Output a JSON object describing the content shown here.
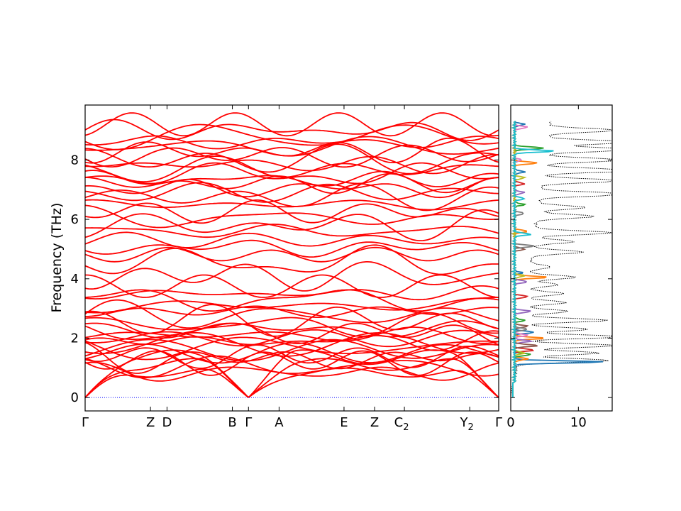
{
  "chart_data": [
    {
      "type": "line",
      "panel": "band-structure",
      "ylabel": "Frequency (THz)",
      "xlabel": "",
      "title": "",
      "ylim": [
        -0.45,
        9.85
      ],
      "y_ticks": [
        0,
        2,
        4,
        6,
        8
      ],
      "q_points": [
        {
          "label": "Γ",
          "sub": "",
          "x": 0.0
        },
        {
          "label": "Z",
          "sub": "",
          "x": 0.158
        },
        {
          "label": "D",
          "sub": "",
          "x": 0.198
        },
        {
          "label": "B",
          "sub": "",
          "x": 0.356
        },
        {
          "label": "Γ",
          "sub": "",
          "x": 0.395
        },
        {
          "label": "A",
          "sub": "",
          "x": 0.469
        },
        {
          "label": "E",
          "sub": "",
          "x": 0.626
        },
        {
          "label": "Z",
          "sub": "",
          "x": 0.7
        },
        {
          "label": "C",
          "sub": "2",
          "x": 0.772
        },
        {
          "label": "Y",
          "sub": "2",
          "x": 0.93
        },
        {
          "label": "Γ",
          "sub": "",
          "x": 1.0
        }
      ],
      "zero_line": {
        "y": 0,
        "color": "#0000ff",
        "style": "dotted"
      },
      "band_color": "#ff0000",
      "acoustic_max_thz": 1.6,
      "optical_band_centers_thz": [
        0.85,
        1.05,
        1.2,
        1.3,
        1.4,
        1.5,
        1.6,
        1.7,
        1.8,
        1.9,
        2.0,
        2.1,
        2.2,
        2.3,
        2.45,
        2.6,
        2.75,
        2.9,
        3.1,
        3.3,
        3.5,
        3.75,
        4.1,
        4.55,
        4.8,
        5.05,
        5.3,
        5.6,
        5.8,
        6.05,
        6.25,
        6.5,
        6.75,
        6.9,
        7.05,
        7.2,
        7.35,
        7.5,
        7.7,
        7.85,
        8.0,
        8.15,
        8.3,
        8.45,
        8.6,
        8.8,
        9.0,
        9.2
      ]
    },
    {
      "type": "line",
      "panel": "density-of-states",
      "xlim": [
        0,
        15
      ],
      "x_ticks": [
        0,
        10
      ],
      "ylim": [
        -0.45,
        9.85
      ],
      "total_dos_style": "dotted",
      "total_dos_color": "#000000",
      "total_dos_peaks": [
        {
          "f": 1.25,
          "v": 13.5
        },
        {
          "f": 1.5,
          "v": 12.0
        },
        {
          "f": 1.75,
          "v": 14.5
        },
        {
          "f": 2.05,
          "v": 15.0
        },
        {
          "f": 2.3,
          "v": 10.0
        },
        {
          "f": 2.6,
          "v": 12.5
        },
        {
          "f": 2.9,
          "v": 6.5
        },
        {
          "f": 3.2,
          "v": 6.0
        },
        {
          "f": 3.5,
          "v": 5.5
        },
        {
          "f": 3.8,
          "v": 4.5
        },
        {
          "f": 4.05,
          "v": 7.0
        },
        {
          "f": 4.4,
          "v": 3.0
        },
        {
          "f": 4.9,
          "v": 7.5
        },
        {
          "f": 5.25,
          "v": 6.0
        },
        {
          "f": 5.55,
          "v": 11.5
        },
        {
          "f": 6.1,
          "v": 8.5
        },
        {
          "f": 6.4,
          "v": 7.0
        },
        {
          "f": 6.85,
          "v": 14.5
        },
        {
          "f": 7.3,
          "v": 12.0
        },
        {
          "f": 7.65,
          "v": 14.5
        },
        {
          "f": 8.0,
          "v": 12.0
        },
        {
          "f": 8.35,
          "v": 14.0
        },
        {
          "f": 8.6,
          "v": 13.0
        },
        {
          "f": 9.0,
          "v": 10.0
        }
      ],
      "partial_dos": [
        {
          "color": "#1f77b4",
          "peaks": [
            {
              "f": 1.2,
              "v": 13.5
            },
            {
              "f": 2.2,
              "v": 3.0
            },
            {
              "f": 4.2,
              "v": 1.2
            },
            {
              "f": 7.6,
              "v": 1.5
            },
            {
              "f": 9.2,
              "v": 1.5
            }
          ]
        },
        {
          "color": "#ff7f0e",
          "peaks": [
            {
              "f": 1.3,
              "v": 2.0
            },
            {
              "f": 2.0,
              "v": 4.5
            },
            {
              "f": 4.05,
              "v": 5.0
            },
            {
              "f": 5.6,
              "v": 2.0
            },
            {
              "f": 7.9,
              "v": 3.5
            }
          ]
        },
        {
          "color": "#2ca02c",
          "peaks": [
            {
              "f": 1.45,
              "v": 2.5
            },
            {
              "f": 2.6,
              "v": 1.5
            },
            {
              "f": 6.5,
              "v": 1.5
            },
            {
              "f": 8.4,
              "v": 4.5
            }
          ]
        },
        {
          "color": "#d62728",
          "peaks": [
            {
              "f": 1.6,
              "v": 3.0
            },
            {
              "f": 3.4,
              "v": 2.0
            },
            {
              "f": 7.2,
              "v": 1.5
            }
          ]
        },
        {
          "color": "#9467bd",
          "peaks": [
            {
              "f": 1.9,
              "v": 2.5
            },
            {
              "f": 2.9,
              "v": 2.5
            },
            {
              "f": 3.9,
              "v": 2.0
            },
            {
              "f": 6.9,
              "v": 1.5
            }
          ]
        },
        {
          "color": "#8c564b",
          "peaks": [
            {
              "f": 1.75,
              "v": 3.5
            },
            {
              "f": 2.4,
              "v": 2.0
            },
            {
              "f": 5.0,
              "v": 1.5
            }
          ]
        },
        {
          "color": "#e377c2",
          "peaks": [
            {
              "f": 2.1,
              "v": 2.0
            },
            {
              "f": 9.1,
              "v": 2.0
            },
            {
              "f": 8.0,
              "v": 1.0
            }
          ]
        },
        {
          "color": "#7f7f7f",
          "peaks": [
            {
              "f": 2.3,
              "v": 2.0
            },
            {
              "f": 5.1,
              "v": 3.0
            },
            {
              "f": 6.2,
              "v": 1.5
            }
          ]
        },
        {
          "color": "#bcbd22",
          "peaks": [
            {
              "f": 1.5,
              "v": 1.5
            },
            {
              "f": 4.1,
              "v": 1.5
            },
            {
              "f": 7.4,
              "v": 1.5
            }
          ]
        },
        {
          "color": "#17becf",
          "peaks": [
            {
              "f": 5.5,
              "v": 2.5
            },
            {
              "f": 8.3,
              "v": 6.0
            },
            {
              "f": 6.7,
              "v": 1.5
            }
          ]
        }
      ]
    }
  ]
}
